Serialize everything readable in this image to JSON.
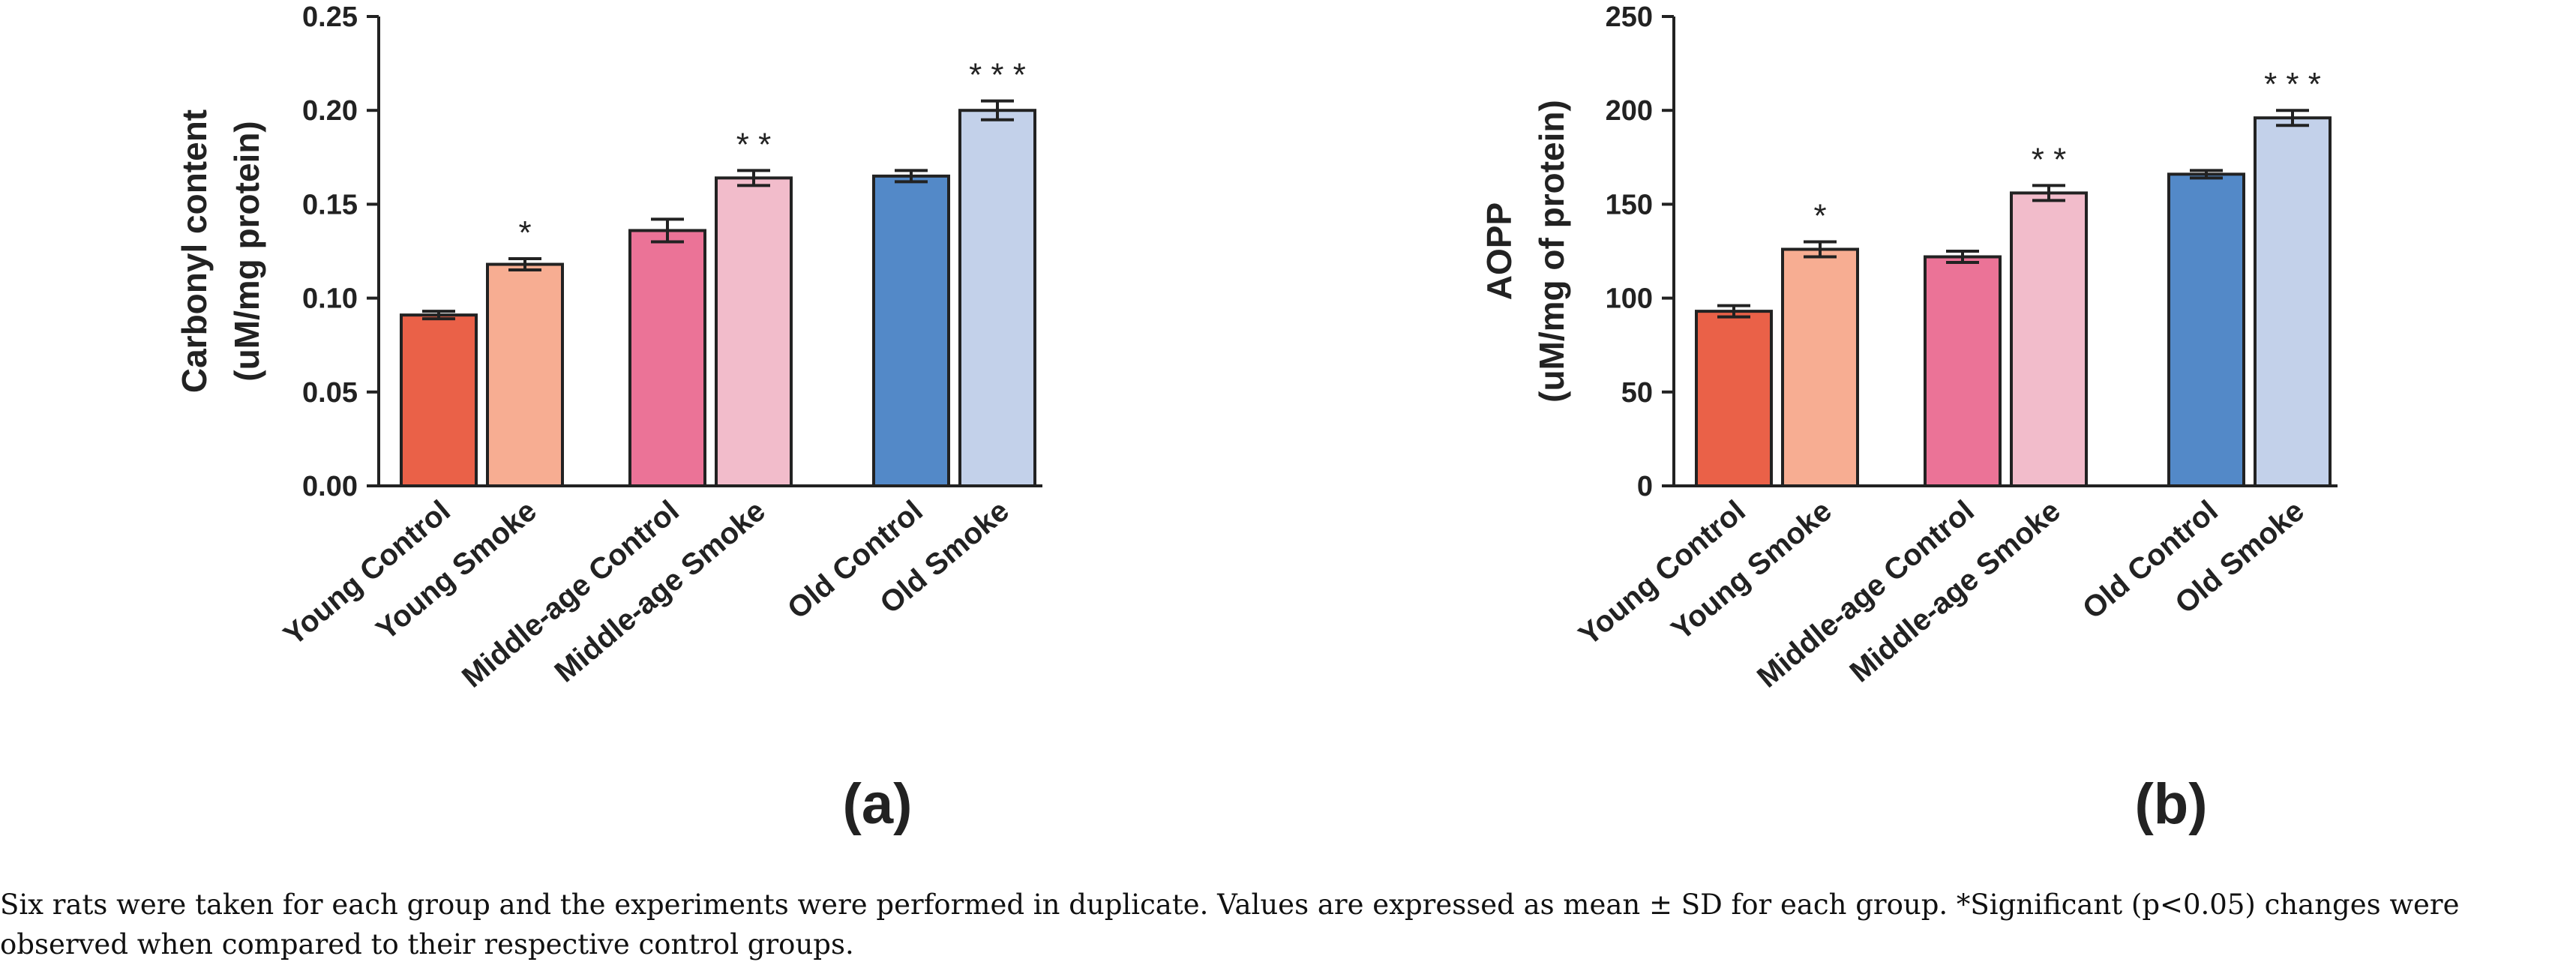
{
  "chart_data": [
    {
      "type": "bar",
      "panel_label": "(a)",
      "ylabel_lines": [
        "Carbonyl content",
        "(uM/mg protein)"
      ],
      "ylim": [
        0,
        0.25
      ],
      "yticks": [
        0,
        0.05,
        0.1,
        0.15,
        0.2,
        0.25
      ],
      "ytick_labels": [
        "0.00",
        "0.05",
        "0.10",
        "0.15",
        "0.20",
        "0.25"
      ],
      "categories": [
        "Young Control",
        "Young Smoke",
        "Middle-age Control",
        "Middle-age Smoke",
        "Old Control",
        "Old Smoke"
      ],
      "values": [
        0.091,
        0.118,
        0.136,
        0.164,
        0.165,
        0.2
      ],
      "errors": [
        0.002,
        0.003,
        0.006,
        0.004,
        0.003,
        0.005
      ],
      "significance": [
        "",
        "*",
        "",
        "* *",
        "",
        "* * *"
      ],
      "colors": [
        "#ea6148",
        "#f7ad92",
        "#eb7397",
        "#f2bccb",
        "#5389c8",
        "#c3d1ea"
      ],
      "grid": false
    },
    {
      "type": "bar",
      "panel_label": "(b)",
      "ylabel_lines": [
        "AOPP",
        "(uM/mg of protein)"
      ],
      "ylim": [
        0,
        250
      ],
      "yticks": [
        0,
        50,
        100,
        150,
        200,
        250
      ],
      "ytick_labels": [
        "0",
        "50",
        "100",
        "150",
        "200",
        "250"
      ],
      "categories": [
        "Young Control",
        "Young Smoke",
        "Middle-age Control",
        "Middle-age Smoke",
        "Old Control",
        "Old Smoke"
      ],
      "values": [
        93,
        126,
        122,
        156,
        166,
        196
      ],
      "errors": [
        3,
        4,
        3,
        4,
        2,
        4
      ],
      "significance": [
        "",
        "*",
        "",
        "* *",
        "",
        "* * *"
      ],
      "colors": [
        "#ea6148",
        "#f7ad92",
        "#eb7397",
        "#f2bccb",
        "#5389c8",
        "#c3d1ea"
      ],
      "grid": false
    }
  ],
  "caption": "Six rats were taken for each group and the experiments were performed in duplicate. Values are expressed as mean ± SD for each group. *Significant (p<0.05) changes were observed when compared to their respective control groups."
}
